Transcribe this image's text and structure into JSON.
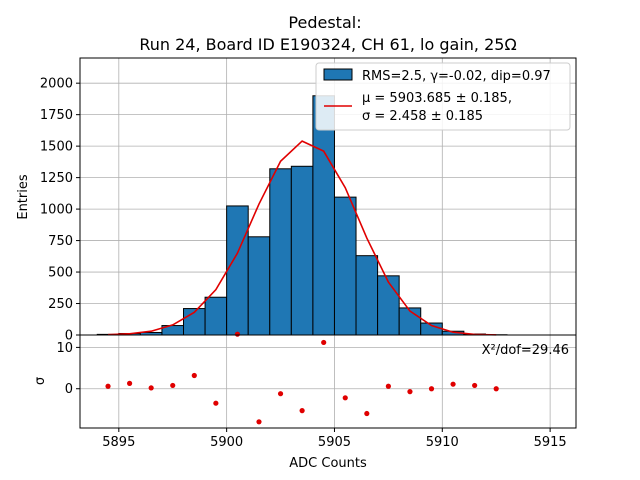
{
  "chart_data": [
    {
      "type": "bar",
      "title_line1": "Pedestal:",
      "title_line2": "Run 24, Board ID E190324, CH 61, lo gain, 25Ω",
      "ylabel": "Entries",
      "ylim": [
        0,
        2200
      ],
      "yticks": [
        0,
        250,
        500,
        750,
        1000,
        1250,
        1500,
        1750,
        2000
      ],
      "grid": true,
      "legend_position": "top-right",
      "bar_color": "#1f77b4",
      "fit_color": "#e00000",
      "legend": {
        "hist_label": "RMS=2.5, γ=-0.02, dip=0.97",
        "fit_label_1": "μ = 5903.685 ± 0.185,",
        "fit_label_2": "σ = 2.458 ± 0.185"
      },
      "bins": {
        "centers": [
          5894.5,
          5895.5,
          5896.5,
          5897.5,
          5898.5,
          5899.5,
          5900.5,
          5901.5,
          5902.5,
          5903.5,
          5904.5,
          5905.5,
          5906.5,
          5907.5,
          5908.5,
          5909.5,
          5910.5,
          5911.5,
          5912.5
        ],
        "values": [
          5,
          12,
          20,
          75,
          210,
          300,
          1025,
          780,
          1320,
          1340,
          1900,
          1095,
          630,
          470,
          215,
          95,
          30,
          8,
          2
        ]
      },
      "fit": {
        "x": [
          5894.5,
          5895.5,
          5896.5,
          5897.5,
          5898.5,
          5899.5,
          5900.5,
          5901.5,
          5902.5,
          5903.5,
          5904.5,
          5905.5,
          5906.5,
          5907.5,
          5908.5,
          5909.5,
          5910.5,
          5911.5,
          5912.5
        ],
        "y": [
          3,
          10,
          30,
          80,
          180,
          360,
          650,
          1040,
          1380,
          1540,
          1460,
          1170,
          770,
          420,
          190,
          75,
          22,
          5,
          1
        ]
      }
    },
    {
      "type": "scatter",
      "xlabel": "ADC Counts",
      "ylabel": "σ",
      "xlim": [
        5893.2,
        5916.2
      ],
      "xticks": [
        5895,
        5900,
        5905,
        5910,
        5915
      ],
      "ylim": [
        -9.5,
        13.0
      ],
      "yticks": [
        0,
        10
      ],
      "grid": true,
      "point_color": "#e00000",
      "annotation": "X²/dof=29.46",
      "residuals": {
        "x": [
          5894.5,
          5895.5,
          5896.5,
          5897.5,
          5898.5,
          5899.5,
          5900.5,
          5901.5,
          5902.5,
          5903.5,
          5904.5,
          5905.5,
          5906.5,
          5907.5,
          5908.5,
          5909.5,
          5910.5,
          5911.5,
          5912.5
        ],
        "y": [
          0.6,
          1.3,
          0.2,
          0.8,
          3.2,
          -3.5,
          13.2,
          -8.0,
          -1.2,
          -5.3,
          11.2,
          -2.2,
          -6.0,
          0.6,
          -0.7,
          0.0,
          1.1,
          0.8,
          0.0
        ]
      }
    }
  ]
}
